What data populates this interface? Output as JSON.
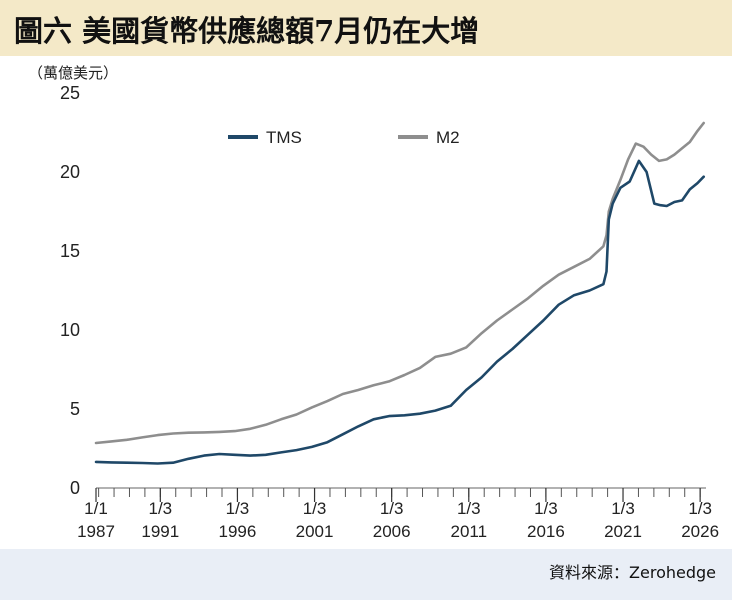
{
  "header": {
    "title": "圖六 美國貨幣供應總額7月仍在大增"
  },
  "unit_label": "（萬億美元）",
  "source": "資料來源：Zerohedge",
  "colors": {
    "tms": "#1f4868",
    "m2": "#8e8e8e",
    "title_bg": "#f4e9c8",
    "source_bg": "#e9eef6",
    "plot_bg": "#ffffff"
  },
  "chart_data": {
    "type": "line",
    "title": "圖六 美國貨幣供應總額7月仍在大增",
    "ylabel": "萬億美元",
    "xlabel": "",
    "xlim": [
      1987.0,
      2026.55
    ],
    "ylim": [
      0,
      25
    ],
    "yticks": [
      0,
      5,
      10,
      15,
      20,
      25
    ],
    "xticks": [
      {
        "x": 1987.0,
        "line1": "1/1",
        "line2": "1987"
      },
      {
        "x": 1991.17,
        "line1": "1/3",
        "line2": "1991"
      },
      {
        "x": 1996.17,
        "line1": "1/3",
        "line2": "1996"
      },
      {
        "x": 2001.17,
        "line1": "1/3",
        "line2": "2001"
      },
      {
        "x": 2006.17,
        "line1": "1/3",
        "line2": "2006"
      },
      {
        "x": 2011.17,
        "line1": "1/3",
        "line2": "2011"
      },
      {
        "x": 2016.17,
        "line1": "1/3",
        "line2": "2016"
      },
      {
        "x": 2021.17,
        "line1": "1/3",
        "line2": "2021"
      },
      {
        "x": 2026.17,
        "line1": "1/3",
        "line2": "2026"
      }
    ],
    "legend_position": "top-left",
    "series": [
      {
        "name": "TMS",
        "color": "#1f4868",
        "points": [
          [
            1987.0,
            1.65
          ],
          [
            1988.0,
            1.62
          ],
          [
            1989.0,
            1.6
          ],
          [
            1990.0,
            1.58
          ],
          [
            1991.0,
            1.55
          ],
          [
            1992.0,
            1.6
          ],
          [
            1993.0,
            1.85
          ],
          [
            1994.0,
            2.05
          ],
          [
            1995.0,
            2.15
          ],
          [
            1996.0,
            2.1
          ],
          [
            1997.0,
            2.05
          ],
          [
            1998.0,
            2.1
          ],
          [
            1999.0,
            2.25
          ],
          [
            2000.0,
            2.4
          ],
          [
            2001.0,
            2.6
          ],
          [
            2002.0,
            2.9
          ],
          [
            2003.0,
            3.4
          ],
          [
            2004.0,
            3.9
          ],
          [
            2005.0,
            4.35
          ],
          [
            2006.0,
            4.55
          ],
          [
            2007.0,
            4.6
          ],
          [
            2008.0,
            4.7
          ],
          [
            2009.0,
            4.9
          ],
          [
            2010.0,
            5.2
          ],
          [
            2011.0,
            6.2
          ],
          [
            2012.0,
            7.0
          ],
          [
            2013.0,
            8.0
          ],
          [
            2014.0,
            8.8
          ],
          [
            2015.0,
            9.7
          ],
          [
            2016.0,
            10.6
          ],
          [
            2017.0,
            11.6
          ],
          [
            2018.0,
            12.2
          ],
          [
            2019.0,
            12.5
          ],
          [
            2019.9,
            12.9
          ],
          [
            2020.1,
            13.7
          ],
          [
            2020.25,
            17.0
          ],
          [
            2020.5,
            18.0
          ],
          [
            2021.0,
            19.0
          ],
          [
            2021.6,
            19.4
          ],
          [
            2022.2,
            20.7
          ],
          [
            2022.7,
            20.0
          ],
          [
            2023.2,
            18.0
          ],
          [
            2023.6,
            17.9
          ],
          [
            2024.0,
            17.85
          ],
          [
            2024.5,
            18.1
          ],
          [
            2025.0,
            18.2
          ],
          [
            2025.5,
            18.9
          ],
          [
            2026.0,
            19.3
          ],
          [
            2026.4,
            19.7
          ]
        ]
      },
      {
        "name": "M2",
        "color": "#8e8e8e",
        "points": [
          [
            1987.0,
            2.85
          ],
          [
            1988.0,
            2.95
          ],
          [
            1989.0,
            3.05
          ],
          [
            1990.0,
            3.2
          ],
          [
            1991.0,
            3.35
          ],
          [
            1992.0,
            3.45
          ],
          [
            1993.0,
            3.5
          ],
          [
            1994.0,
            3.52
          ],
          [
            1995.0,
            3.55
          ],
          [
            1996.0,
            3.6
          ],
          [
            1997.0,
            3.75
          ],
          [
            1998.0,
            4.0
          ],
          [
            1999.0,
            4.35
          ],
          [
            2000.0,
            4.65
          ],
          [
            2001.0,
            5.1
          ],
          [
            2002.0,
            5.5
          ],
          [
            2003.0,
            5.95
          ],
          [
            2004.0,
            6.2
          ],
          [
            2005.0,
            6.5
          ],
          [
            2006.0,
            6.75
          ],
          [
            2007.0,
            7.15
          ],
          [
            2008.0,
            7.6
          ],
          [
            2009.0,
            8.3
          ],
          [
            2010.0,
            8.5
          ],
          [
            2011.0,
            8.9
          ],
          [
            2012.0,
            9.8
          ],
          [
            2013.0,
            10.6
          ],
          [
            2014.0,
            11.3
          ],
          [
            2015.0,
            12.0
          ],
          [
            2016.0,
            12.8
          ],
          [
            2017.0,
            13.5
          ],
          [
            2018.0,
            14.0
          ],
          [
            2019.0,
            14.5
          ],
          [
            2019.9,
            15.3
          ],
          [
            2020.1,
            16.0
          ],
          [
            2020.25,
            17.5
          ],
          [
            2020.5,
            18.3
          ],
          [
            2021.0,
            19.5
          ],
          [
            2021.5,
            20.8
          ],
          [
            2022.0,
            21.8
          ],
          [
            2022.5,
            21.6
          ],
          [
            2023.0,
            21.1
          ],
          [
            2023.5,
            20.7
          ],
          [
            2024.0,
            20.8
          ],
          [
            2024.5,
            21.1
          ],
          [
            2025.0,
            21.5
          ],
          [
            2025.5,
            21.9
          ],
          [
            2026.0,
            22.6
          ],
          [
            2026.4,
            23.1
          ]
        ]
      }
    ]
  }
}
